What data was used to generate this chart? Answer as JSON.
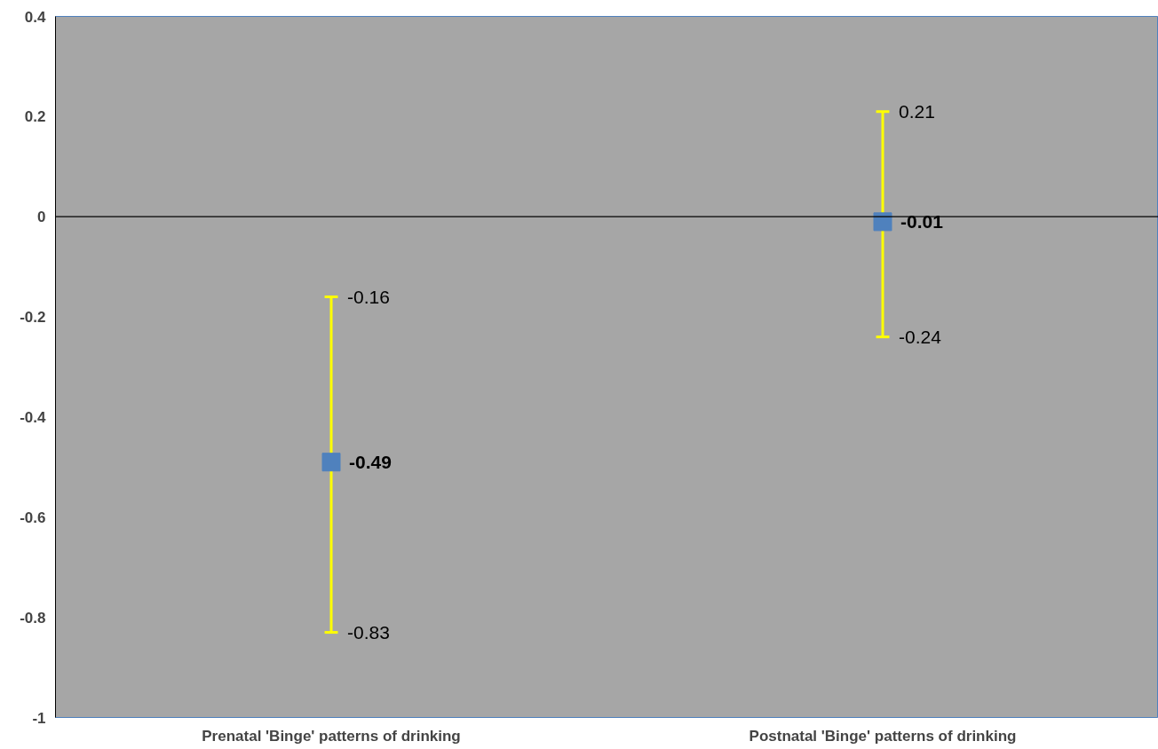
{
  "chart_data": {
    "type": "scatter",
    "categories": [
      "Prenatal 'Binge' patterns of drinking",
      "Postnatal 'Binge' patterns of drinking"
    ],
    "series": [
      {
        "color": "#4f81bd",
        "values": [
          -0.49,
          -0.01
        ],
        "errors": [
          [
            -0.83,
            -0.16
          ],
          [
            -0.24,
            0.21
          ]
        ]
      }
    ],
    "marker": "square",
    "data_labels": true,
    "annotations": [
      {
        "text": "-0.16",
        "x": "Prenatal 'Binge' patterns of drinking",
        "y": -0.16
      },
      {
        "text": "-0.83",
        "x": "Prenatal 'Binge' patterns of drinking",
        "y": -0.83
      },
      {
        "text": "0.21",
        "x": "Postnatal 'Binge' patterns of drinking",
        "y": 0.21
      },
      {
        "text": "-0.24",
        "x": "Postnatal 'Binge' patterns of drinking",
        "y": -0.24
      }
    ],
    "ref_lines": [
      {
        "axis": "y",
        "value": 0,
        "color": "#000000"
      }
    ],
    "ylim": [
      -1,
      0.4
    ],
    "yticks": [
      -1,
      -0.8,
      -0.6,
      -0.4,
      -0.2,
      0,
      0.2,
      0.4
    ],
    "grid": false
  }
}
